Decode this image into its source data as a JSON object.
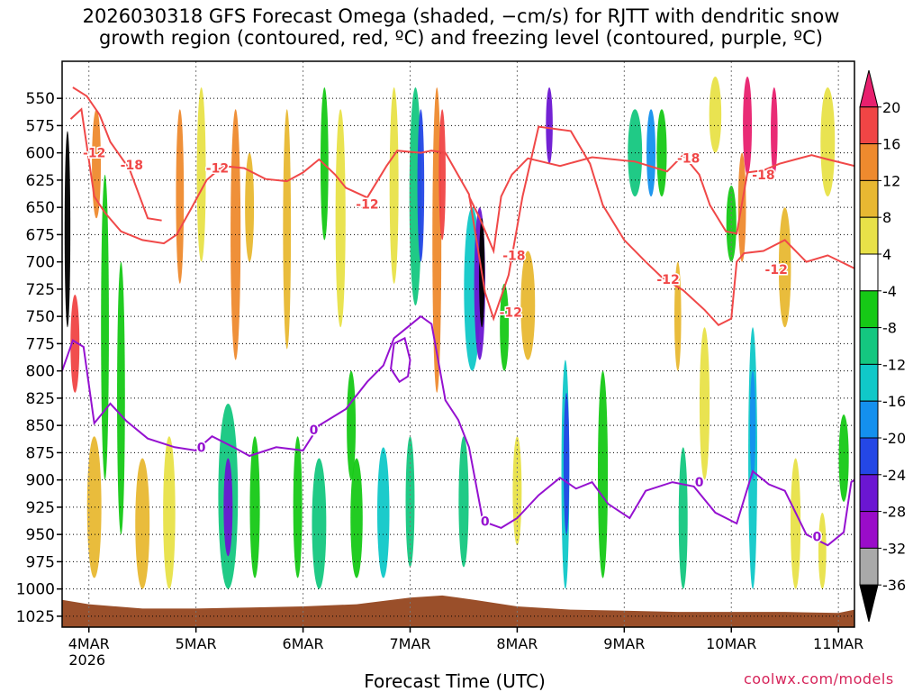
{
  "chart_data": {
    "type": "heatmap",
    "title": "2026030318 GFS Forecast Omega (shaded, −cm/s) for RJTT with dendritic snow\ngrowth region (contoured, red, ºC) and freezing level (contoured, purple, ºC)",
    "xlabel": "Forecast Time (UTC)",
    "ylabel": "",
    "x_ticks": [
      "4MAR",
      "5MAR",
      "6MAR",
      "7MAR",
      "8MAR",
      "9MAR",
      "10MAR",
      "11MAR"
    ],
    "x_year": "2026",
    "x_range_days": [
      3.75,
      11.15
    ],
    "y_ticks": [
      550,
      575,
      600,
      625,
      650,
      675,
      700,
      725,
      750,
      775,
      800,
      825,
      850,
      875,
      900,
      925,
      950,
      975,
      1000,
      1025
    ],
    "y_range_hpa": [
      516,
      1035
    ],
    "colorbar": {
      "labels": [
        20,
        16,
        12,
        8,
        4,
        -4,
        -8,
        -12,
        -16,
        -20,
        -24,
        -28,
        -32,
        -36
      ],
      "colors": [
        "#e8206e",
        "#f04545",
        "#ee8a2e",
        "#e8b832",
        "#e8e148",
        "#ffffff",
        "#16c916",
        "#14c780",
        "#10c8c8",
        "#1490ee",
        "#2447e6",
        "#6b16d2",
        "#9a0cc9",
        "#a9a9a9",
        "#000000"
      ]
    },
    "series": [
      {
        "name": "-12",
        "color": "#f04848",
        "points": [
          [
            3.83,
            569
          ],
          [
            3.93,
            560
          ],
          [
            4.05,
            640
          ],
          [
            4.15,
            655
          ],
          [
            4.3,
            672
          ],
          [
            4.5,
            680
          ],
          [
            4.7,
            683
          ],
          [
            4.82,
            675
          ],
          [
            4.95,
            652
          ],
          [
            5.1,
            625
          ],
          [
            5.25,
            612
          ],
          [
            5.45,
            614
          ],
          [
            5.65,
            624
          ],
          [
            5.85,
            626
          ],
          [
            6.0,
            618
          ],
          [
            6.15,
            606
          ],
          [
            6.3,
            620
          ],
          [
            6.4,
            632
          ],
          [
            6.6,
            641
          ],
          [
            6.78,
            612
          ],
          [
            6.88,
            598
          ],
          [
            7.1,
            600
          ],
          [
            7.2,
            598
          ],
          [
            7.33,
            600
          ],
          [
            7.55,
            638
          ],
          [
            7.7,
            728
          ],
          [
            7.78,
            752
          ],
          [
            7.92,
            712
          ],
          [
            8.05,
            640
          ],
          [
            8.2,
            576
          ],
          [
            8.5,
            580
          ],
          [
            8.68,
            610
          ],
          [
            8.8,
            648
          ],
          [
            9.0,
            680
          ],
          [
            9.2,
            700
          ],
          [
            9.35,
            714
          ],
          [
            9.55,
            726
          ],
          [
            9.75,
            744
          ],
          [
            9.88,
            758
          ],
          [
            10.0,
            752
          ],
          [
            10.05,
            700
          ],
          [
            10.12,
            692
          ],
          [
            10.3,
            690
          ],
          [
            10.5,
            680
          ],
          [
            10.7,
            700
          ],
          [
            10.9,
            694
          ],
          [
            11.15,
            706
          ]
        ]
      },
      {
        "name": "-18",
        "color": "#f04848",
        "points": [
          [
            3.85,
            540
          ],
          [
            3.98,
            548
          ],
          [
            4.1,
            565
          ],
          [
            4.2,
            590
          ],
          [
            4.38,
            615
          ],
          [
            4.55,
            660
          ],
          [
            4.68,
            662
          ]
        ],
        "points2": [
          [
            7.55,
            640
          ],
          [
            7.65,
            660
          ],
          [
            7.78,
            690
          ],
          [
            7.85,
            640
          ],
          [
            7.95,
            620
          ],
          [
            8.1,
            605
          ],
          [
            8.4,
            612
          ],
          [
            8.7,
            604
          ],
          [
            9.1,
            608
          ],
          [
            9.4,
            617
          ],
          [
            9.55,
            602
          ],
          [
            9.7,
            620
          ],
          [
            9.8,
            648
          ],
          [
            9.95,
            672
          ],
          [
            10.05,
            674
          ],
          [
            10.15,
            618
          ],
          [
            10.3,
            616
          ],
          [
            10.45,
            610
          ],
          [
            10.6,
            606
          ],
          [
            10.75,
            602
          ],
          [
            10.9,
            606
          ],
          [
            11.15,
            612
          ]
        ]
      },
      {
        "name": "0",
        "color": "#9511d0",
        "points": [
          [
            3.75,
            800
          ],
          [
            3.85,
            772
          ],
          [
            3.95,
            778
          ],
          [
            4.05,
            848
          ],
          [
            4.2,
            830
          ],
          [
            4.35,
            846
          ],
          [
            4.55,
            862
          ],
          [
            4.8,
            870
          ],
          [
            5.0,
            873
          ],
          [
            5.15,
            860
          ],
          [
            5.35,
            870
          ],
          [
            5.5,
            878
          ],
          [
            5.75,
            870
          ],
          [
            6.0,
            873
          ],
          [
            6.15,
            850
          ],
          [
            6.4,
            835
          ],
          [
            6.6,
            810
          ],
          [
            6.75,
            795
          ],
          [
            6.85,
            770
          ],
          [
            7.0,
            758
          ],
          [
            7.1,
            750
          ],
          [
            7.2,
            757
          ],
          [
            7.33,
            827
          ],
          [
            7.45,
            845
          ],
          [
            7.55,
            870
          ],
          [
            7.68,
            938
          ],
          [
            7.85,
            944
          ],
          [
            8.0,
            935
          ],
          [
            8.2,
            914
          ],
          [
            8.4,
            898
          ],
          [
            8.55,
            908
          ],
          [
            8.7,
            902
          ],
          [
            8.85,
            922
          ],
          [
            9.05,
            935
          ],
          [
            9.2,
            910
          ],
          [
            9.45,
            902
          ],
          [
            9.65,
            906
          ],
          [
            9.85,
            930
          ],
          [
            10.05,
            940
          ],
          [
            10.2,
            892
          ],
          [
            10.35,
            904
          ],
          [
            10.5,
            910
          ],
          [
            10.7,
            950
          ],
          [
            10.9,
            960
          ],
          [
            11.05,
            948
          ],
          [
            11.12,
            902
          ],
          [
            11.15,
            900
          ]
        ]
      }
    ],
    "contour_labels": [
      {
        "text": "-12",
        "x": 4.05,
        "y": 600
      },
      {
        "text": "-18",
        "x": 4.4,
        "y": 611
      },
      {
        "text": "-12",
        "x": 5.2,
        "y": 614
      },
      {
        "text": "-12",
        "x": 6.6,
        "y": 647
      },
      {
        "text": "-18",
        "x": 7.97,
        "y": 694
      },
      {
        "text": "-12",
        "x": 7.94,
        "y": 746
      },
      {
        "text": "-18",
        "x": 9.6,
        "y": 605
      },
      {
        "text": "-12",
        "x": 9.41,
        "y": 716
      },
      {
        "text": "-18",
        "x": 10.3,
        "y": 620
      },
      {
        "text": "-12",
        "x": 10.42,
        "y": 707
      },
      {
        "text": "0",
        "x": 5.05,
        "y": 870
      },
      {
        "text": "0",
        "x": 6.1,
        "y": 854
      },
      {
        "text": "0",
        "x": 7.7,
        "y": 938
      },
      {
        "text": "0",
        "x": 9.7,
        "y": 902
      },
      {
        "text": "0",
        "x": 10.8,
        "y": 952
      }
    ],
    "freezing_closed": [
      [
        6.85,
        775
      ],
      [
        6.95,
        770
      ],
      [
        7.0,
        790
      ],
      [
        6.98,
        805
      ],
      [
        6.9,
        810
      ],
      [
        6.82,
        798
      ],
      [
        6.85,
        775
      ]
    ],
    "shading_blobs": [
      {
        "x": 3.8,
        "w": 0.02,
        "y1": 580,
        "y2": 760,
        "c": 14
      },
      {
        "x": 3.87,
        "w": 0.05,
        "y1": 730,
        "y2": 820,
        "c": 1
      },
      {
        "x": 4.07,
        "w": 0.05,
        "y1": 560,
        "y2": 660,
        "c": 2
      },
      {
        "x": 4.05,
        "w": 0.1,
        "y1": 860,
        "y2": 990,
        "c": 3
      },
      {
        "x": 4.5,
        "w": 0.1,
        "y1": 880,
        "y2": 1000,
        "c": 3
      },
      {
        "x": 4.75,
        "w": 0.08,
        "y1": 860,
        "y2": 1000,
        "c": 4
      },
      {
        "x": 4.85,
        "w": 0.04,
        "y1": 560,
        "y2": 720,
        "c": 2
      },
      {
        "x": 5.05,
        "w": 0.05,
        "y1": 540,
        "y2": 700,
        "c": 4
      },
      {
        "x": 5.3,
        "w": 0.15,
        "y1": 830,
        "y2": 1000,
        "c": 7
      },
      {
        "x": 5.3,
        "w": 0.05,
        "y1": 880,
        "y2": 970,
        "c": 11
      },
      {
        "x": 5.37,
        "w": 0.06,
        "y1": 560,
        "y2": 790,
        "c": 2
      },
      {
        "x": 5.5,
        "w": 0.05,
        "y1": 600,
        "y2": 700,
        "c": 3
      },
      {
        "x": 5.55,
        "w": 0.06,
        "y1": 860,
        "y2": 990,
        "c": 6
      },
      {
        "x": 5.95,
        "w": 0.05,
        "y1": 860,
        "y2": 990,
        "c": 6
      },
      {
        "x": 6.15,
        "w": 0.1,
        "y1": 880,
        "y2": 1000,
        "c": 7
      },
      {
        "x": 6.5,
        "w": 0.08,
        "y1": 880,
        "y2": 990,
        "c": 6
      },
      {
        "x": 6.75,
        "w": 0.08,
        "y1": 870,
        "y2": 990,
        "c": 8
      },
      {
        "x": 7.0,
        "w": 0.05,
        "y1": 860,
        "y2": 980,
        "c": 7
      },
      {
        "x": 7.05,
        "w": 0.08,
        "y1": 540,
        "y2": 740,
        "c": 7
      },
      {
        "x": 7.1,
        "w": 0.03,
        "y1": 560,
        "y2": 700,
        "c": 10
      },
      {
        "x": 7.25,
        "w": 0.05,
        "y1": 540,
        "y2": 820,
        "c": 2
      },
      {
        "x": 7.3,
        "w": 0.03,
        "y1": 560,
        "y2": 680,
        "c": 1
      },
      {
        "x": 7.5,
        "w": 0.06,
        "y1": 860,
        "y2": 980,
        "c": 7
      },
      {
        "x": 7.58,
        "w": 0.12,
        "y1": 650,
        "y2": 800,
        "c": 8
      },
      {
        "x": 7.65,
        "w": 0.07,
        "y1": 650,
        "y2": 790,
        "c": 11
      },
      {
        "x": 7.67,
        "w": 0.02,
        "y1": 660,
        "y2": 760,
        "c": 14
      },
      {
        "x": 7.88,
        "w": 0.05,
        "y1": 720,
        "y2": 800,
        "c": 6
      },
      {
        "x": 8.1,
        "w": 0.1,
        "y1": 690,
        "y2": 790,
        "c": 3
      },
      {
        "x": 8.3,
        "w": 0.03,
        "y1": 540,
        "y2": 610,
        "c": 11
      },
      {
        "x": 8.45,
        "w": 0.04,
        "y1": 790,
        "y2": 1000,
        "c": 8
      },
      {
        "x": 8.46,
        "w": 0.02,
        "y1": 820,
        "y2": 950,
        "c": 10
      },
      {
        "x": 8.8,
        "w": 0.06,
        "y1": 800,
        "y2": 990,
        "c": 6
      },
      {
        "x": 9.1,
        "w": 0.1,
        "y1": 560,
        "y2": 640,
        "c": 7
      },
      {
        "x": 9.25,
        "w": 0.05,
        "y1": 560,
        "y2": 640,
        "c": 9
      },
      {
        "x": 9.35,
        "w": 0.06,
        "y1": 560,
        "y2": 640,
        "c": 6
      },
      {
        "x": 9.5,
        "w": 0.03,
        "y1": 700,
        "y2": 800,
        "c": 3
      },
      {
        "x": 9.55,
        "w": 0.05,
        "y1": 870,
        "y2": 1000,
        "c": 7
      },
      {
        "x": 9.85,
        "w": 0.08,
        "y1": 530,
        "y2": 600,
        "c": 4
      },
      {
        "x": 10.0,
        "w": 0.06,
        "y1": 630,
        "y2": 700,
        "c": 6
      },
      {
        "x": 10.15,
        "w": 0.05,
        "y1": 530,
        "y2": 620,
        "c": 0
      },
      {
        "x": 10.1,
        "w": 0.04,
        "y1": 600,
        "y2": 700,
        "c": 2
      },
      {
        "x": 10.2,
        "w": 0.05,
        "y1": 760,
        "y2": 1000,
        "c": 8
      },
      {
        "x": 10.2,
        "w": 0.02,
        "y1": 800,
        "y2": 900,
        "c": 9
      },
      {
        "x": 10.4,
        "w": 0.03,
        "y1": 540,
        "y2": 620,
        "c": 0
      },
      {
        "x": 10.5,
        "w": 0.08,
        "y1": 650,
        "y2": 760,
        "c": 3
      },
      {
        "x": 10.6,
        "w": 0.06,
        "y1": 880,
        "y2": 1000,
        "c": 4
      },
      {
        "x": 10.9,
        "w": 0.1,
        "y1": 540,
        "y2": 640,
        "c": 4
      },
      {
        "x": 11.05,
        "w": 0.06,
        "y1": 840,
        "y2": 920,
        "c": 6
      },
      {
        "x": 4.15,
        "w": 0.04,
        "y1": 620,
        "y2": 900,
        "c": 6
      },
      {
        "x": 4.3,
        "w": 0.04,
        "y1": 700,
        "y2": 950,
        "c": 6
      },
      {
        "x": 5.85,
        "w": 0.04,
        "y1": 560,
        "y2": 780,
        "c": 3
      },
      {
        "x": 6.35,
        "w": 0.06,
        "y1": 560,
        "y2": 760,
        "c": 4
      },
      {
        "x": 6.85,
        "w": 0.05,
        "y1": 540,
        "y2": 720,
        "c": 4
      },
      {
        "x": 6.2,
        "w": 0.04,
        "y1": 540,
        "y2": 680,
        "c": 6
      },
      {
        "x": 6.45,
        "w": 0.05,
        "y1": 800,
        "y2": 900,
        "c": 6
      },
      {
        "x": 8.0,
        "w": 0.05,
        "y1": 860,
        "y2": 960,
        "c": 4
      },
      {
        "x": 9.75,
        "w": 0.06,
        "y1": 760,
        "y2": 900,
        "c": 4
      },
      {
        "x": 10.85,
        "w": 0.04,
        "y1": 930,
        "y2": 1000,
        "c": 4
      }
    ],
    "terrain_color": "#9a4f2a",
    "legend": "right"
  }
}
